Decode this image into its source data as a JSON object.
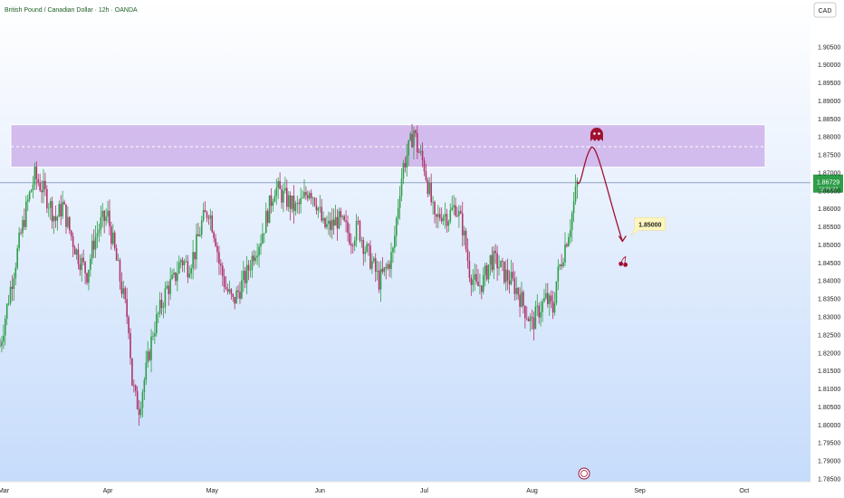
{
  "header": {
    "title": "British Pound / Canadian Dollar · 12h · OANDA",
    "currency_button": "CAD"
  },
  "price_tag": {
    "value": "1.86729",
    "sub": "13:29:27"
  },
  "target_label": "1.85000",
  "colors": {
    "up": "#2e9e48",
    "down": "#b0336b",
    "zone_fill": "#c8a6e6",
    "current_line": "#8ea3c2",
    "projection": "#a01030",
    "label_bg": "#fff6bf",
    "bg_top": "#ffffff",
    "bg_bottom": "#c6dcfb"
  },
  "chart_data": {
    "type": "candlestick",
    "title": "British Pound / Canadian Dollar · 12h · OANDA",
    "ylim": [
      1.783,
      1.913
    ],
    "y_ticks": [
      1.905,
      1.9,
      1.895,
      1.89,
      1.885,
      1.88,
      1.875,
      1.87,
      1.865,
      1.86,
      1.855,
      1.85,
      1.845,
      1.84,
      1.835,
      1.83,
      1.825,
      1.82,
      1.815,
      1.81,
      1.805,
      1.8,
      1.795,
      1.79,
      1.785
    ],
    "y_tick_labels": [
      "1.90500",
      "1.90000",
      "1.89500",
      "1.89000",
      "1.88500",
      "1.88000",
      "1.87500",
      "1.87000",
      "1.86500",
      "1.86000",
      "1.85500",
      "1.85000",
      "1.84500",
      "1.84000",
      "1.83500",
      "1.83000",
      "1.82500",
      "1.82000",
      "1.81500",
      "1.81000",
      "1.80500",
      "1.80000",
      "1.79500",
      "1.79000",
      "1.78500"
    ],
    "x_ticks": [
      {
        "label": "Mar",
        "day": 0
      },
      {
        "label": "Apr",
        "day": 31
      },
      {
        "label": "May",
        "day": 61
      },
      {
        "label": "Jun",
        "day": 92
      },
      {
        "label": "Jul",
        "day": 122
      },
      {
        "label": "Aug",
        "day": 153
      },
      {
        "label": "Sep",
        "day": 184
      },
      {
        "label": "Oct",
        "day": 214
      }
    ],
    "xlim": [
      0,
      240
    ],
    "resistance_zone": {
      "top": 1.8834,
      "bottom": 1.8716,
      "midline": 1.8773
    },
    "current_price": 1.86729,
    "target_price": 1.85,
    "close_path": [
      [
        0,
        1.822
      ],
      [
        3,
        1.838
      ],
      [
        6,
        1.853
      ],
      [
        8,
        1.862
      ],
      [
        10,
        1.869
      ],
      [
        12,
        1.866
      ],
      [
        14,
        1.862
      ],
      [
        16,
        1.857
      ],
      [
        18,
        1.861
      ],
      [
        20,
        1.854
      ],
      [
        22,
        1.848
      ],
      [
        25,
        1.842
      ],
      [
        27,
        1.851
      ],
      [
        29,
        1.856
      ],
      [
        31,
        1.858
      ],
      [
        33,
        1.848
      ],
      [
        35,
        1.838
      ],
      [
        37,
        1.828
      ],
      [
        38,
        1.812
      ],
      [
        39,
        1.807
      ],
      [
        40,
        1.805
      ],
      [
        42,
        1.815
      ],
      [
        44,
        1.826
      ],
      [
        46,
        1.832
      ],
      [
        48,
        1.838
      ],
      [
        50,
        1.84
      ],
      [
        52,
        1.846
      ],
      [
        54,
        1.844
      ],
      [
        56,
        1.848
      ],
      [
        58,
        1.856
      ],
      [
        60,
        1.86
      ],
      [
        62,
        1.852
      ],
      [
        63,
        1.845
      ],
      [
        65,
        1.838
      ],
      [
        67,
        1.834
      ],
      [
        69,
        1.838
      ],
      [
        71,
        1.842
      ],
      [
        73,
        1.848
      ],
      [
        75,
        1.852
      ],
      [
        77,
        1.859
      ],
      [
        79,
        1.866
      ],
      [
        81,
        1.864
      ],
      [
        83,
        1.862
      ],
      [
        85,
        1.86
      ],
      [
        87,
        1.862
      ],
      [
        89,
        1.866
      ],
      [
        91,
        1.862
      ],
      [
        93,
        1.855
      ],
      [
        95,
        1.855
      ],
      [
        97,
        1.857
      ],
      [
        99,
        1.855
      ],
      [
        101,
        1.852
      ],
      [
        103,
        1.855
      ],
      [
        105,
        1.849
      ],
      [
        107,
        1.845
      ],
      [
        109,
        1.84
      ],
      [
        111,
        1.843
      ],
      [
        113,
        1.848
      ],
      [
        115,
        1.866
      ],
      [
        116,
        1.872
      ],
      [
        118,
        1.878
      ],
      [
        119,
        1.882
      ],
      [
        120,
        1.877
      ],
      [
        122,
        1.872
      ],
      [
        124,
        1.862
      ],
      [
        125,
        1.856
      ],
      [
        127,
        1.859
      ],
      [
        129,
        1.858
      ],
      [
        131,
        1.861
      ],
      [
        133,
        1.855
      ],
      [
        135,
        1.843
      ],
      [
        137,
        1.838
      ],
      [
        139,
        1.84
      ],
      [
        141,
        1.846
      ],
      [
        143,
        1.845
      ],
      [
        145,
        1.842
      ],
      [
        147,
        1.84
      ],
      [
        149,
        1.837
      ],
      [
        151,
        1.832
      ],
      [
        153,
        1.828
      ],
      [
        155,
        1.832
      ],
      [
        157,
        1.835
      ],
      [
        159,
        1.832
      ],
      [
        160,
        1.84
      ],
      [
        162,
        1.848
      ],
      [
        164,
        1.856
      ],
      [
        166,
        1.867
      ]
    ],
    "projection_path": [
      [
        166,
        1.8675
      ],
      [
        170,
        1.877
      ],
      [
        175,
        1.863
      ],
      [
        179,
        1.851
      ],
      [
        178,
        1.8455
      ]
    ],
    "projection_curve": "curved arrow from current price up into the resistance zone, then down to the target"
  }
}
